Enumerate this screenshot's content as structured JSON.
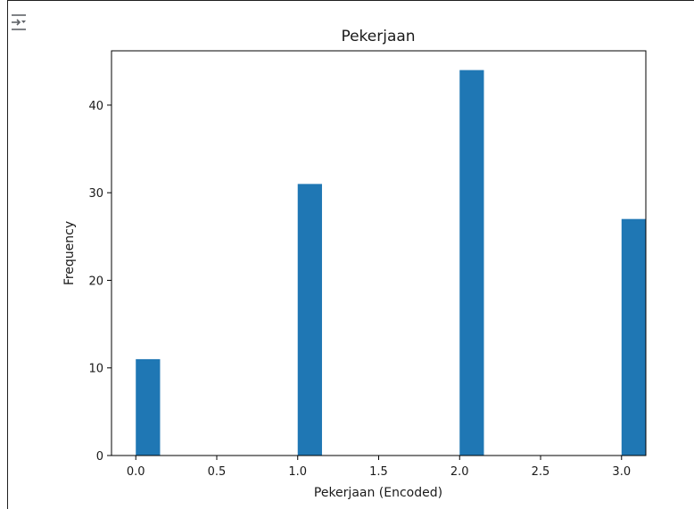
{
  "toolbar": {
    "output_toggle_icon": "output-collapse-icon"
  },
  "chart_data": {
    "type": "bar",
    "title": "Pekerjaan",
    "xlabel": "Pekerjaan (Encoded)",
    "ylabel": "Frequency",
    "x": [
      0,
      1,
      2,
      3
    ],
    "values": [
      11,
      31,
      44,
      27
    ],
    "bar_width": 0.15,
    "xlim": [
      -0.15,
      3.15
    ],
    "ylim": [
      0,
      46.2
    ],
    "xticks": [
      0.0,
      0.5,
      1.0,
      1.5,
      2.0,
      2.5,
      3.0
    ],
    "xtick_labels": [
      "0.0",
      "0.5",
      "1.0",
      "1.5",
      "2.0",
      "2.5",
      "3.0"
    ],
    "yticks": [
      0,
      10,
      20,
      30,
      40
    ],
    "ytick_labels": [
      "0",
      "10",
      "20",
      "30",
      "40"
    ],
    "bar_color": "#1f77b4",
    "grid": false,
    "legend": "none"
  }
}
